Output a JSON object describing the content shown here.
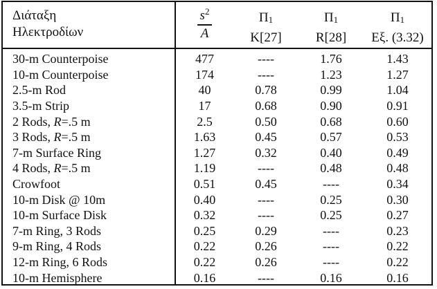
{
  "header": {
    "col0_line1": "Διάταξη",
    "col0_line2": "Ηλεκτροδίων",
    "col1_num": "s",
    "col1_exp": "2",
    "col1_den": "A",
    "col2_sym": "Π",
    "col2_sub": "1",
    "col2_ref": "K[27]",
    "col3_sym": "Π",
    "col3_sub": "1",
    "col3_ref": "R[28]",
    "col4_sym": "Π",
    "col4_sub": "1",
    "col4_ref": "Εξ. (3.32)"
  },
  "rows": [
    {
      "name": "30-m Counterpoise",
      "s2a": "477",
      "k": "----",
      "r": "1.76",
      "eq": "1.43"
    },
    {
      "name": "10-m Counterpoise",
      "s2a": "174",
      "k": "----",
      "r": "1.23",
      "eq": "1.27"
    },
    {
      "name": "2.5-m Rod",
      "s2a": "40",
      "k": "0.78",
      "r": "0.99",
      "eq": "1.04"
    },
    {
      "name": "3.5-m Strip",
      "s2a": "17",
      "k": "0.68",
      "r": "0.90",
      "eq": "0.91"
    },
    {
      "name_pre": "2 Rods, ",
      "name_var": "R",
      "name_post": "=.5 m",
      "s2a": "2.5",
      "k": "0.50",
      "r": "0.68",
      "eq": "0.60"
    },
    {
      "name_pre": "3 Rods, ",
      "name_var": "R",
      "name_post": "=.5 m",
      "s2a": "1.63",
      "k": "0.45",
      "r": "0.57",
      "eq": "0.53"
    },
    {
      "name": "7-m Surface Ring",
      "s2a": "1.27",
      "k": "0.32",
      "r": "0.40",
      "eq": "0.49"
    },
    {
      "name_pre": "4 Rods, ",
      "name_var": "R",
      "name_post": "=.5 m",
      "s2a": "1.19",
      "k": "----",
      "r": "0.48",
      "eq": "0.48"
    },
    {
      "name": "Crowfoot",
      "s2a": "0.51",
      "k": "0.45",
      "r": "----",
      "eq": "0.34"
    },
    {
      "name": "10-m Disk @ 10m",
      "s2a": "0.40",
      "k": "----",
      "r": "0.25",
      "eq": "0.30"
    },
    {
      "name": "10-m Surface Disk",
      "s2a": "0.32",
      "k": "----",
      "r": "0.25",
      "eq": "0.27"
    },
    {
      "name": "7-m Ring, 3 Rods",
      "s2a": "0.25",
      "k": "0.29",
      "r": "----",
      "eq": "0.23"
    },
    {
      "name": "9-m Ring, 4 Rods",
      "s2a": "0.22",
      "k": "0.26",
      "r": "----",
      "eq": "0.22"
    },
    {
      "name": "12-m Ring, 6 Rods",
      "s2a": "0.22",
      "k": "0.26",
      "r": "----",
      "eq": "0.22"
    },
    {
      "name": "10-m Hemisphere",
      "s2a": "0.16",
      "k": "----",
      "r": "0.16",
      "eq": "0.16"
    }
  ]
}
